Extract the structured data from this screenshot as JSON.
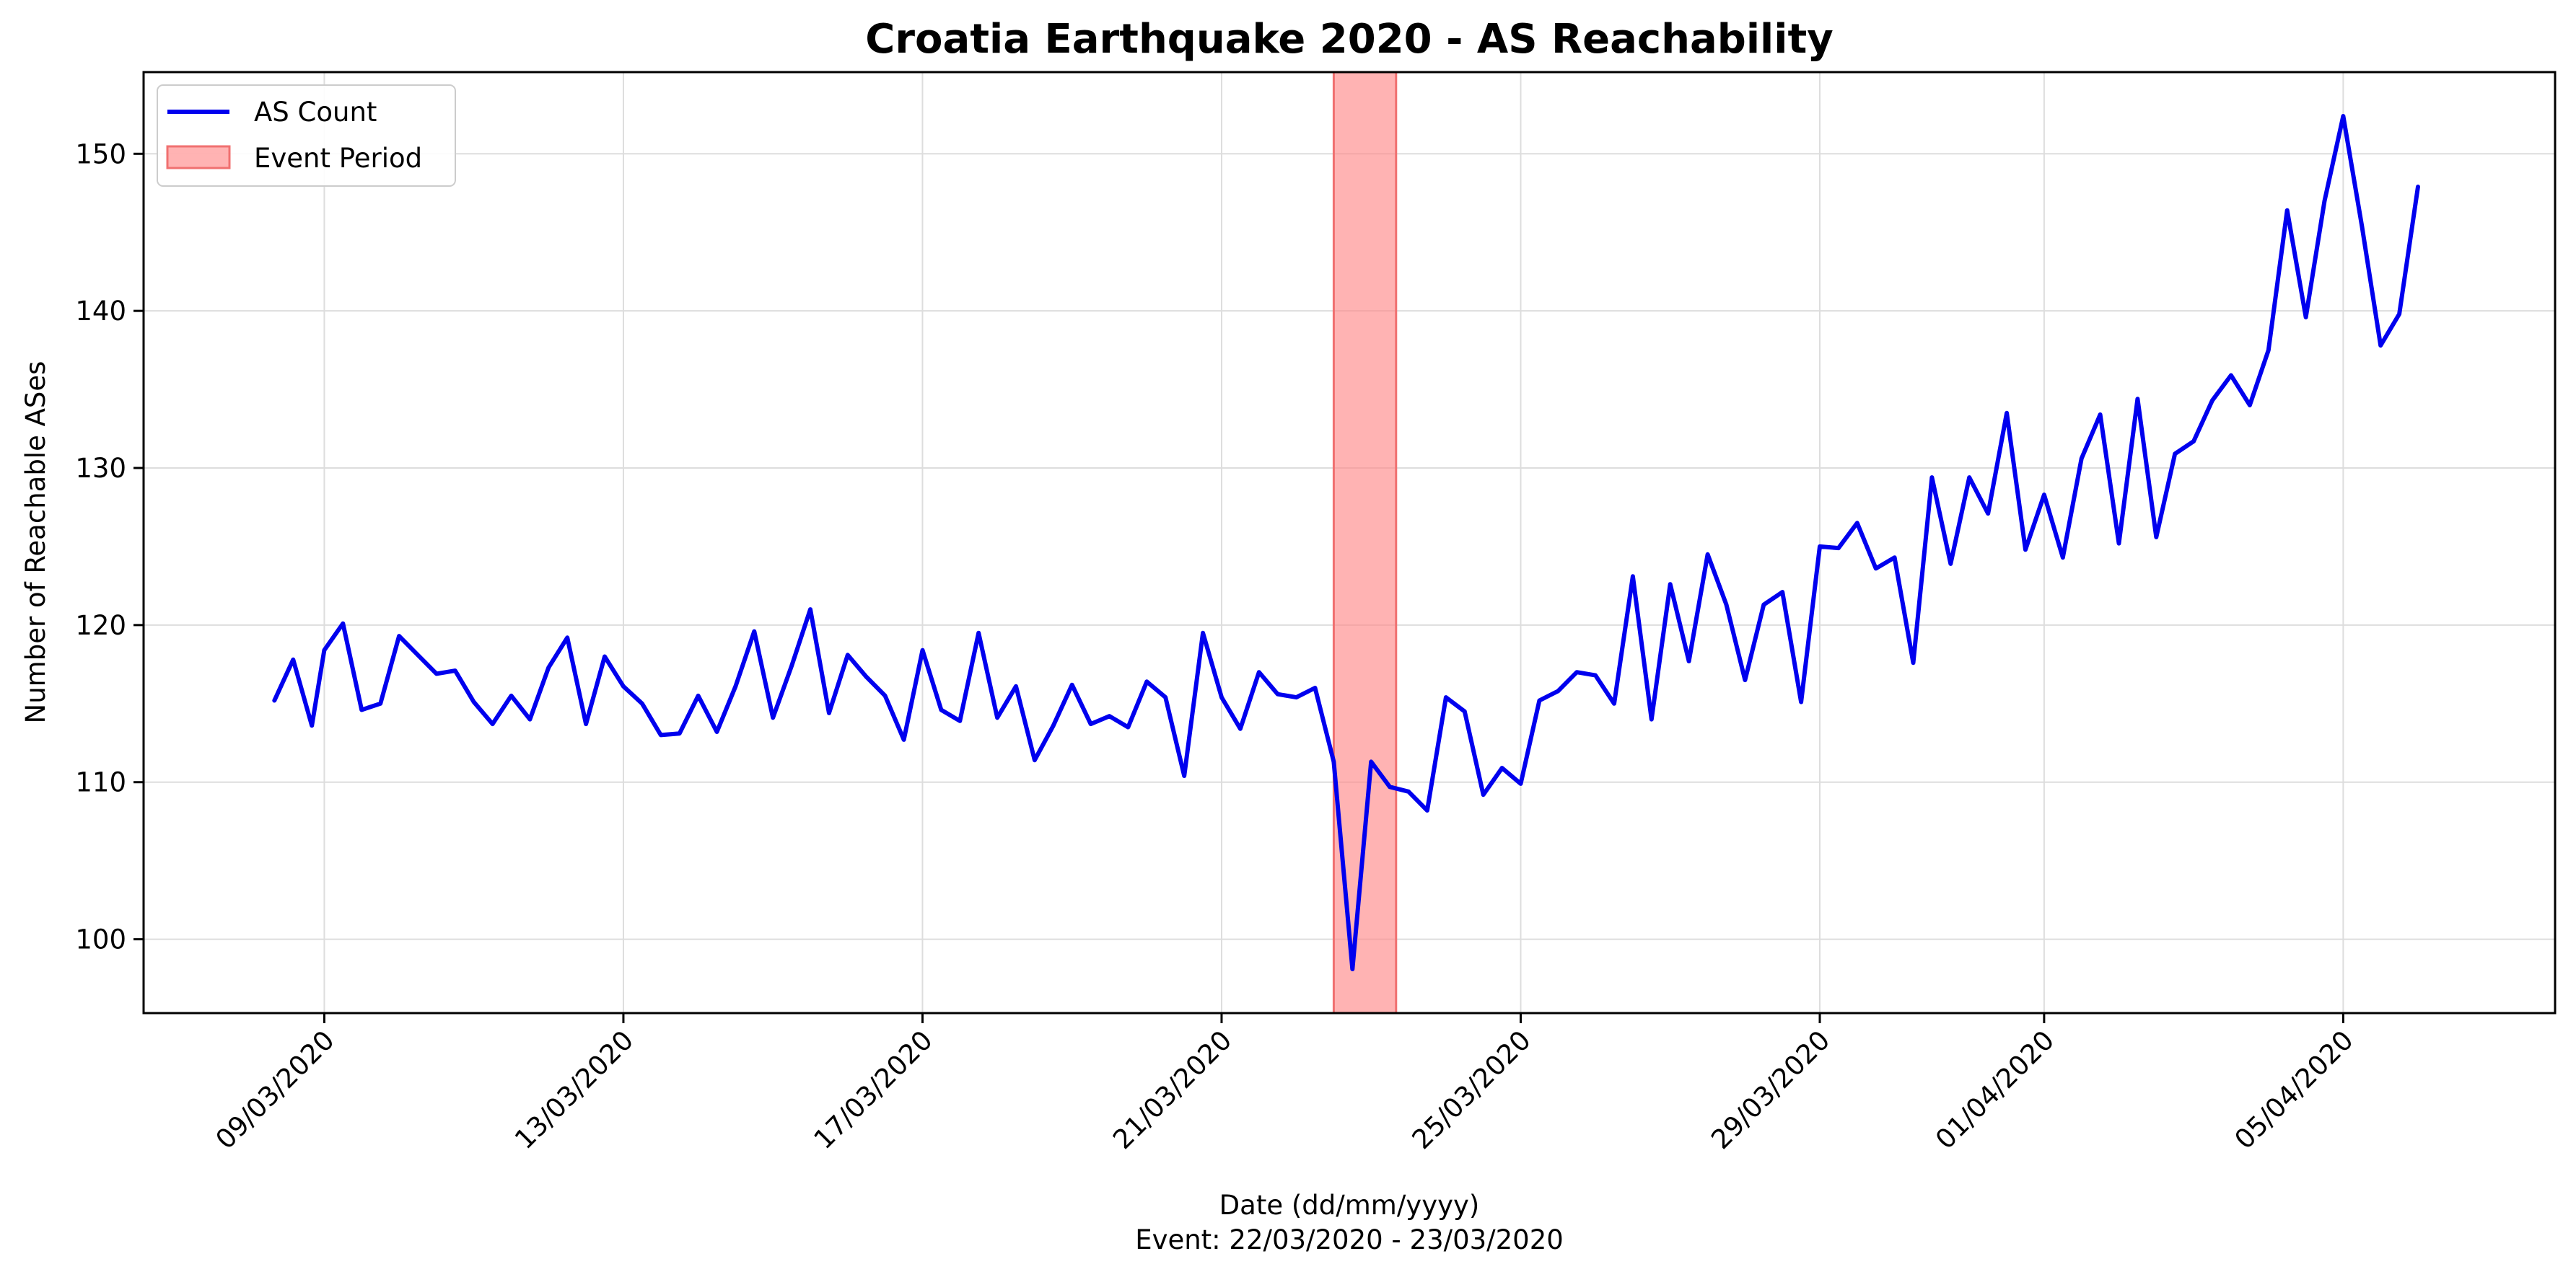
{
  "chart_data": {
    "type": "line",
    "title": "Croatia Earthquake 2020 - AS Reachability",
    "xlabel": "Date (dd/mm/yyyy)",
    "xlabel_sub": "Event: 22/03/2020 - 23/03/2020",
    "ylabel": "Number of Reachable ASes",
    "x_axis_kind": "date",
    "xlim": [
      "2020-03-06T14:00",
      "2020-04-07T20:00"
    ],
    "ylim": [
      95.3,
      155.2
    ],
    "yticks": [
      100,
      110,
      120,
      130,
      140,
      150
    ],
    "xticks": [
      {
        "date": "2020-03-09",
        "label": "09/03/2020"
      },
      {
        "date": "2020-03-13",
        "label": "13/03/2020"
      },
      {
        "date": "2020-03-17",
        "label": "17/03/2020"
      },
      {
        "date": "2020-03-21",
        "label": "21/03/2020"
      },
      {
        "date": "2020-03-25",
        "label": "25/03/2020"
      },
      {
        "date": "2020-03-29",
        "label": "29/03/2020"
      },
      {
        "date": "2020-04-01",
        "label": "01/04/2020"
      },
      {
        "date": "2020-04-05",
        "label": "05/04/2020"
      }
    ],
    "grid": true,
    "legend_position": "top-left",
    "event_period": {
      "start": "2020-03-22T12:00",
      "end": "2020-03-23T08:00",
      "label": "Event Period",
      "color": "#ff8a8a"
    },
    "series": [
      {
        "name": "AS Count",
        "color": "#0000ee",
        "points": [
          [
            "2020-03-08T08:00",
            115.2
          ],
          [
            "2020-03-08T14:00",
            117.8
          ],
          [
            "2020-03-08T20:00",
            113.6
          ],
          [
            "2020-03-09T00:00",
            118.4
          ],
          [
            "2020-03-09T06:00",
            120.1
          ],
          [
            "2020-03-09T12:00",
            114.6
          ],
          [
            "2020-03-09T18:00",
            115.0
          ],
          [
            "2020-03-10T00:00",
            119.3
          ],
          [
            "2020-03-10T06:00",
            118.1
          ],
          [
            "2020-03-10T12:00",
            116.9
          ],
          [
            "2020-03-10T18:00",
            117.1
          ],
          [
            "2020-03-11T00:00",
            115.1
          ],
          [
            "2020-03-11T06:00",
            113.7
          ],
          [
            "2020-03-11T12:00",
            115.5
          ],
          [
            "2020-03-11T18:00",
            114.0
          ],
          [
            "2020-03-12T00:00",
            117.3
          ],
          [
            "2020-03-12T06:00",
            119.2
          ],
          [
            "2020-03-12T12:00",
            113.7
          ],
          [
            "2020-03-12T18:00",
            118.0
          ],
          [
            "2020-03-13T00:00",
            116.1
          ],
          [
            "2020-03-13T06:00",
            115.0
          ],
          [
            "2020-03-13T12:00",
            113.0
          ],
          [
            "2020-03-13T18:00",
            113.1
          ],
          [
            "2020-03-14T00:00",
            115.5
          ],
          [
            "2020-03-14T06:00",
            113.2
          ],
          [
            "2020-03-14T12:00",
            116.1
          ],
          [
            "2020-03-14T18:00",
            119.6
          ],
          [
            "2020-03-15T00:00",
            114.1
          ],
          [
            "2020-03-15T06:00",
            117.4
          ],
          [
            "2020-03-15T12:00",
            121.0
          ],
          [
            "2020-03-15T18:00",
            114.4
          ],
          [
            "2020-03-16T00:00",
            118.1
          ],
          [
            "2020-03-16T06:00",
            116.7
          ],
          [
            "2020-03-16T12:00",
            115.5
          ],
          [
            "2020-03-16T18:00",
            112.7
          ],
          [
            "2020-03-17T00:00",
            118.4
          ],
          [
            "2020-03-17T06:00",
            114.6
          ],
          [
            "2020-03-17T12:00",
            113.9
          ],
          [
            "2020-03-17T18:00",
            119.5
          ],
          [
            "2020-03-18T00:00",
            114.1
          ],
          [
            "2020-03-18T06:00",
            116.1
          ],
          [
            "2020-03-18T12:00",
            111.4
          ],
          [
            "2020-03-18T18:00",
            113.6
          ],
          [
            "2020-03-19T00:00",
            116.2
          ],
          [
            "2020-03-19T06:00",
            113.7
          ],
          [
            "2020-03-19T12:00",
            114.2
          ],
          [
            "2020-03-19T18:00",
            113.5
          ],
          [
            "2020-03-20T00:00",
            116.4
          ],
          [
            "2020-03-20T06:00",
            115.4
          ],
          [
            "2020-03-20T12:00",
            110.4
          ],
          [
            "2020-03-20T18:00",
            119.5
          ],
          [
            "2020-03-21T00:00",
            115.4
          ],
          [
            "2020-03-21T06:00",
            113.4
          ],
          [
            "2020-03-21T12:00",
            117.0
          ],
          [
            "2020-03-21T18:00",
            115.6
          ],
          [
            "2020-03-22T00:00",
            115.4
          ],
          [
            "2020-03-22T06:00",
            116.0
          ],
          [
            "2020-03-22T12:00",
            111.3
          ],
          [
            "2020-03-22T18:00",
            98.1
          ],
          [
            "2020-03-23T00:00",
            111.3
          ],
          [
            "2020-03-23T06:00",
            109.7
          ],
          [
            "2020-03-23T12:00",
            109.4
          ],
          [
            "2020-03-23T18:00",
            108.2
          ],
          [
            "2020-03-24T00:00",
            115.4
          ],
          [
            "2020-03-24T06:00",
            114.5
          ],
          [
            "2020-03-24T12:00",
            109.2
          ],
          [
            "2020-03-24T18:00",
            110.9
          ],
          [
            "2020-03-25T00:00",
            109.9
          ],
          [
            "2020-03-25T06:00",
            115.2
          ],
          [
            "2020-03-25T12:00",
            115.8
          ],
          [
            "2020-03-25T18:00",
            117.0
          ],
          [
            "2020-03-26T00:00",
            116.8
          ],
          [
            "2020-03-26T06:00",
            115.0
          ],
          [
            "2020-03-26T12:00",
            123.1
          ],
          [
            "2020-03-26T18:00",
            114.0
          ],
          [
            "2020-03-27T00:00",
            122.6
          ],
          [
            "2020-03-27T06:00",
            117.7
          ],
          [
            "2020-03-27T12:00",
            124.5
          ],
          [
            "2020-03-27T18:00",
            121.3
          ],
          [
            "2020-03-28T00:00",
            116.5
          ],
          [
            "2020-03-28T06:00",
            121.3
          ],
          [
            "2020-03-28T12:00",
            122.1
          ],
          [
            "2020-03-28T18:00",
            115.1
          ],
          [
            "2020-03-29T00:00",
            125.0
          ],
          [
            "2020-03-29T06:00",
            124.9
          ],
          [
            "2020-03-29T12:00",
            126.5
          ],
          [
            "2020-03-29T18:00",
            123.6
          ],
          [
            "2020-03-30T00:00",
            124.3
          ],
          [
            "2020-03-30T06:00",
            117.6
          ],
          [
            "2020-03-30T12:00",
            129.4
          ],
          [
            "2020-03-30T18:00",
            123.9
          ],
          [
            "2020-03-31T00:00",
            129.4
          ],
          [
            "2020-03-31T06:00",
            127.1
          ],
          [
            "2020-03-31T12:00",
            133.5
          ],
          [
            "2020-03-31T18:00",
            124.8
          ],
          [
            "2020-04-01T00:00",
            128.3
          ],
          [
            "2020-04-01T06:00",
            124.3
          ],
          [
            "2020-04-01T12:00",
            130.6
          ],
          [
            "2020-04-01T18:00",
            133.4
          ],
          [
            "2020-04-02T00:00",
            125.2
          ],
          [
            "2020-04-02T06:00",
            134.4
          ],
          [
            "2020-04-02T12:00",
            125.6
          ],
          [
            "2020-04-02T18:00",
            130.9
          ],
          [
            "2020-04-03T00:00",
            131.7
          ],
          [
            "2020-04-03T06:00",
            134.3
          ],
          [
            "2020-04-03T12:00",
            135.9
          ],
          [
            "2020-04-03T18:00",
            134.0
          ],
          [
            "2020-04-04T00:00",
            137.5
          ],
          [
            "2020-04-04T06:00",
            146.4
          ],
          [
            "2020-04-04T12:00",
            139.6
          ],
          [
            "2020-04-04T18:00",
            147.0
          ],
          [
            "2020-04-05T00:00",
            152.4
          ],
          [
            "2020-04-05T06:00",
            145.4
          ],
          [
            "2020-04-05T12:00",
            137.8
          ],
          [
            "2020-04-05T18:00",
            139.8
          ],
          [
            "2020-04-06T00:00",
            147.9
          ]
        ]
      }
    ]
  }
}
